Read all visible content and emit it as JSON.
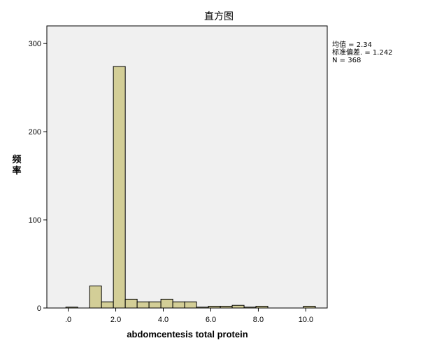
{
  "chart_data": {
    "type": "bar",
    "title": "直方图",
    "xlabel": "abdomcentesis total protein",
    "ylabel": "频率",
    "xlim": [
      -0.9,
      10.9
    ],
    "ylim": [
      0,
      320
    ],
    "x_ticks": [
      {
        "value": 0,
        "label": ".0"
      },
      {
        "value": 2,
        "label": "2.0"
      },
      {
        "value": 4,
        "label": "4.0"
      },
      {
        "value": 6,
        "label": "6.0"
      },
      {
        "value": 8,
        "label": "8.0"
      },
      {
        "value": 10,
        "label": "10.0"
      }
    ],
    "y_ticks": [
      {
        "value": 0,
        "label": "0"
      },
      {
        "value": 100,
        "label": "100"
      },
      {
        "value": 200,
        "label": "200"
      },
      {
        "value": 300,
        "label": "300"
      }
    ],
    "bin_width": 0.5,
    "bins": [
      {
        "start": -0.1,
        "count": 1
      },
      {
        "start": 0.9,
        "count": 25
      },
      {
        "start": 1.4,
        "count": 7
      },
      {
        "start": 1.9,
        "count": 274
      },
      {
        "start": 2.4,
        "count": 10
      },
      {
        "start": 2.9,
        "count": 7
      },
      {
        "start": 3.4,
        "count": 7
      },
      {
        "start": 3.9,
        "count": 10
      },
      {
        "start": 4.4,
        "count": 7
      },
      {
        "start": 4.9,
        "count": 7
      },
      {
        "start": 5.4,
        "count": 1
      },
      {
        "start": 5.9,
        "count": 2
      },
      {
        "start": 6.4,
        "count": 2
      },
      {
        "start": 6.9,
        "count": 3
      },
      {
        "start": 7.4,
        "count": 1
      },
      {
        "start": 7.9,
        "count": 2
      },
      {
        "start": 9.9,
        "count": 2
      }
    ],
    "stats": [
      "均值 = 2.34",
      "标准偏差. = 1.242",
      "N = 368"
    ],
    "colors": {
      "plot_background": "#f0f0f0",
      "bar_fill": "#d3ce97",
      "bar_stroke": "#000000",
      "axis": "#000000"
    },
    "grid": false
  }
}
